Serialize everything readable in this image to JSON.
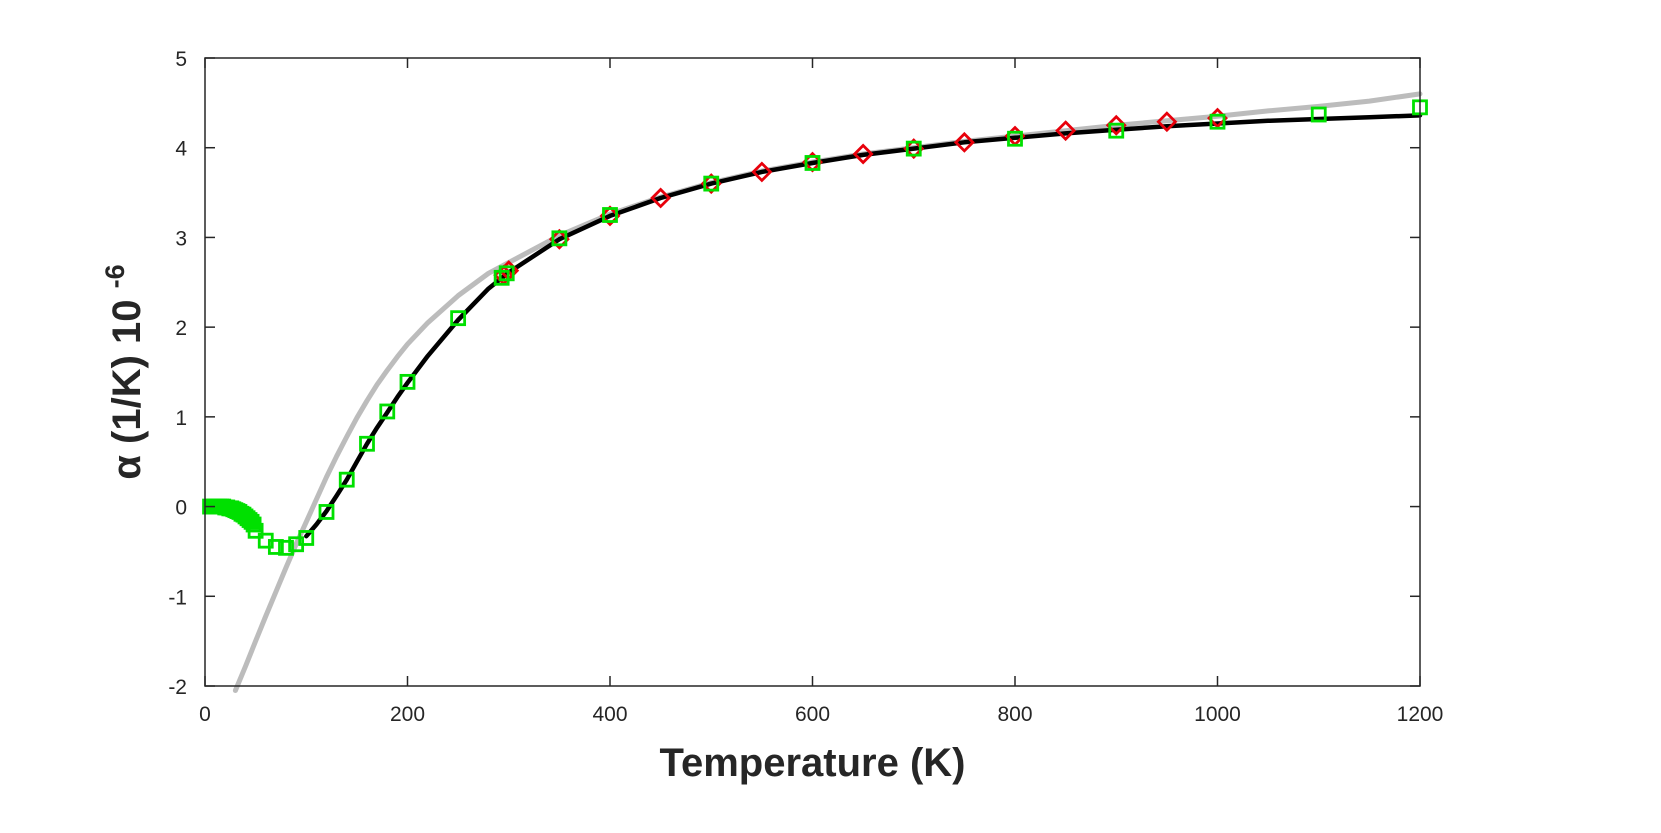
{
  "chart_data": {
    "type": "scatter",
    "xlabel": "Temperature (K)",
    "ylabel": {
      "main": "α (1/K) 10",
      "exponent": "-6"
    },
    "xlim": [
      0,
      1200
    ],
    "ylim": [
      -2,
      5
    ],
    "xticks": [
      0,
      200,
      400,
      600,
      800,
      1000,
      1200
    ],
    "yticks": [
      -2,
      -1,
      0,
      1,
      2,
      3,
      4,
      5
    ],
    "grid": false,
    "legend": "none",
    "series": [
      {
        "marker": "line",
        "color": "#a0a0a0",
        "x": [
          30,
          40,
          50,
          60,
          70,
          80,
          90,
          100,
          110,
          120,
          130,
          140,
          150,
          160,
          170,
          180,
          190,
          200,
          220,
          250,
          280,
          300,
          350,
          400,
          450,
          500,
          550,
          600,
          650,
          700,
          750,
          800,
          850,
          900,
          950,
          1000,
          1050,
          1100,
          1150,
          1200
        ],
        "y": [
          -2.05,
          -1.78,
          -1.5,
          -1.22,
          -0.95,
          -0.68,
          -0.42,
          -0.17,
          0.08,
          0.33,
          0.56,
          0.78,
          0.99,
          1.18,
          1.36,
          1.52,
          1.67,
          1.81,
          2.05,
          2.35,
          2.6,
          2.72,
          3.02,
          3.26,
          3.45,
          3.61,
          3.74,
          3.84,
          3.93,
          4.0,
          4.07,
          4.13,
          4.19,
          4.25,
          4.3,
          4.35,
          4.41,
          4.46,
          4.52,
          4.6
        ]
      },
      {
        "marker": "line",
        "color": "#000000",
        "x": [
          100,
          110,
          120,
          130,
          140,
          150,
          160,
          170,
          180,
          190,
          200,
          220,
          250,
          280,
          300,
          350,
          400,
          450,
          500,
          550,
          600,
          650,
          700,
          750,
          800,
          850,
          900,
          950,
          1000,
          1050,
          1100,
          1150,
          1200
        ],
        "y": [
          -0.33,
          -0.2,
          -0.05,
          0.12,
          0.3,
          0.5,
          0.7,
          0.88,
          1.05,
          1.22,
          1.38,
          1.68,
          2.08,
          2.43,
          2.61,
          2.98,
          3.24,
          3.44,
          3.6,
          3.73,
          3.83,
          3.92,
          3.99,
          4.06,
          4.11,
          4.16,
          4.2,
          4.24,
          4.27,
          4.3,
          4.32,
          4.34,
          4.36
        ]
      },
      {
        "marker": "diamond",
        "color": "#e8000b",
        "x": [
          295,
          300,
          350,
          400,
          450,
          500,
          550,
          600,
          650,
          700,
          750,
          800,
          850,
          900,
          950,
          1000
        ],
        "y": [
          2.58,
          2.63,
          2.98,
          3.24,
          3.44,
          3.6,
          3.73,
          3.84,
          3.93,
          3.99,
          4.06,
          4.13,
          4.19,
          4.25,
          4.29,
          4.33
        ]
      },
      {
        "marker": "square",
        "color": "#00e000",
        "x": [
          5,
          8,
          10,
          12,
          14,
          16,
          18,
          20,
          22,
          24,
          26,
          28,
          30,
          32,
          34,
          36,
          38,
          40,
          42,
          44,
          46,
          48,
          50,
          60,
          70,
          80,
          90,
          100,
          120,
          140,
          160,
          180,
          200,
          250,
          293,
          298,
          350,
          400,
          500,
          600,
          700,
          800,
          900,
          1000,
          1100,
          1200
        ],
        "y": [
          0.0,
          0.0,
          0.0,
          0.0,
          0.0,
          0.0,
          0.0,
          -0.01,
          -0.01,
          -0.02,
          -0.02,
          -0.03,
          -0.04,
          -0.05,
          -0.06,
          -0.08,
          -0.09,
          -0.11,
          -0.13,
          -0.15,
          -0.17,
          -0.2,
          -0.27,
          -0.38,
          -0.45,
          -0.46,
          -0.42,
          -0.35,
          -0.06,
          0.3,
          0.7,
          1.06,
          1.39,
          2.1,
          2.55,
          2.6,
          2.99,
          3.25,
          3.6,
          3.83,
          3.99,
          4.1,
          4.19,
          4.29,
          4.37,
          4.45
        ]
      }
    ]
  }
}
